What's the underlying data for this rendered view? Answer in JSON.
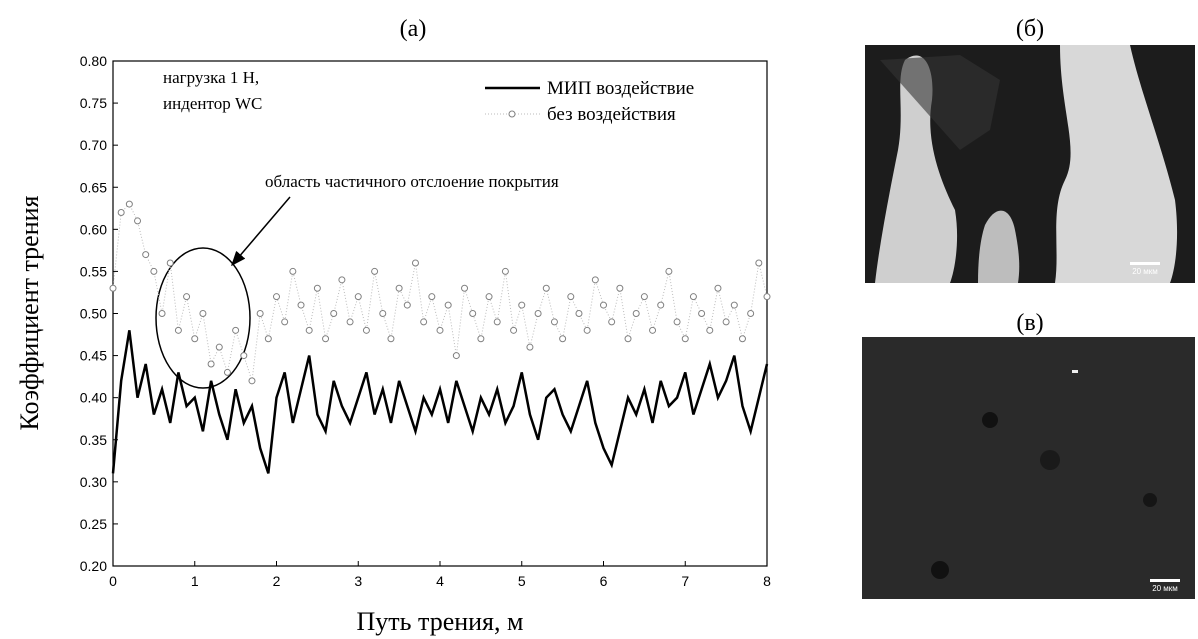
{
  "chart_data": {
    "type": "line",
    "title": "(а)",
    "xlabel": "Путь трения, м",
    "ylabel": "Коэффициент трения",
    "xlim": [
      0,
      8
    ],
    "xticks": [
      0,
      1,
      2,
      3,
      4,
      5,
      6,
      7,
      8
    ],
    "ylim": [
      0.2,
      0.8
    ],
    "yticks": [
      {
        "value": 0.2,
        "label": "0.20"
      },
      0.25,
      {
        "value": 0.3,
        "label": "0.30"
      },
      0.35,
      {
        "value": 0.4,
        "label": "0.40"
      },
      0.45,
      {
        "value": 0.5,
        "label": "0.50"
      },
      0.55,
      {
        "value": 0.6,
        "label": "0.60"
      },
      0.65,
      {
        "value": 0.7,
        "label": "0.70"
      },
      0.75,
      {
        "value": 0.8,
        "label": "0.80"
      }
    ],
    "legend": "upper right",
    "annotations": [
      "нагрузка 1 Н,",
      "индентор WC",
      "область частичного отслоение покрытия"
    ],
    "x": [
      0,
      0.1,
      0.2,
      0.3,
      0.4,
      0.5,
      0.6,
      0.7,
      0.8,
      0.9,
      1,
      1.1,
      1.2,
      1.3,
      1.4,
      1.5,
      1.6,
      1.7,
      1.8,
      1.9,
      2,
      2.1,
      2.2,
      2.3,
      2.4,
      2.5,
      2.6,
      2.7,
      2.8,
      2.9,
      3,
      3.1,
      3.2,
      3.3,
      3.4,
      3.5,
      3.6,
      3.7,
      3.8,
      3.9,
      4,
      4.1,
      4.2,
      4.3,
      4.4,
      4.5,
      4.6,
      4.7,
      4.8,
      4.9,
      5,
      5.1,
      5.2,
      5.3,
      5.4,
      5.5,
      5.6,
      5.7,
      5.8,
      5.9,
      6,
      6.1,
      6.2,
      6.3,
      6.4,
      6.5,
      6.6,
      6.7,
      6.8,
      6.9,
      7,
      7.1,
      7.2,
      7.3,
      7.4,
      7.5,
      7.6,
      7.7,
      7.8,
      7.9,
      8
    ],
    "series": [
      {
        "name": "МИП воздействие",
        "style": "line",
        "color": "#000000",
        "values": [
          0.31,
          0.42,
          0.48,
          0.4,
          0.44,
          0.38,
          0.41,
          0.37,
          0.43,
          0.39,
          0.4,
          0.36,
          0.42,
          0.38,
          0.35,
          0.41,
          0.37,
          0.39,
          0.34,
          0.31,
          0.4,
          0.43,
          0.37,
          0.41,
          0.45,
          0.38,
          0.36,
          0.42,
          0.39,
          0.37,
          0.4,
          0.43,
          0.38,
          0.41,
          0.37,
          0.42,
          0.39,
          0.36,
          0.4,
          0.38,
          0.41,
          0.37,
          0.42,
          0.39,
          0.36,
          0.4,
          0.38,
          0.41,
          0.37,
          0.39,
          0.43,
          0.38,
          0.35,
          0.4,
          0.41,
          0.38,
          0.36,
          0.39,
          0.42,
          0.37,
          0.34,
          0.32,
          0.36,
          0.4,
          0.38,
          0.41,
          0.37,
          0.42,
          0.39,
          0.4,
          0.43,
          0.38,
          0.41,
          0.44,
          0.4,
          0.42,
          0.45,
          0.39,
          0.36,
          0.4,
          0.44
        ]
      },
      {
        "name": "без воздействия",
        "style": "markers",
        "color": "#808080",
        "values": [
          0.53,
          0.62,
          0.63,
          0.61,
          0.57,
          0.55,
          0.5,
          0.56,
          0.48,
          0.52,
          0.47,
          0.5,
          0.44,
          0.46,
          0.43,
          0.48,
          0.45,
          0.42,
          0.5,
          0.47,
          0.52,
          0.49,
          0.55,
          0.51,
          0.48,
          0.53,
          0.47,
          0.5,
          0.54,
          0.49,
          0.52,
          0.48,
          0.55,
          0.5,
          0.47,
          0.53,
          0.51,
          0.56,
          0.49,
          0.52,
          0.48,
          0.51,
          0.45,
          0.53,
          0.5,
          0.47,
          0.52,
          0.49,
          0.55,
          0.48,
          0.51,
          0.46,
          0.5,
          0.53,
          0.49,
          0.47,
          0.52,
          0.5,
          0.48,
          0.54,
          0.51,
          0.49,
          0.53,
          0.47,
          0.5,
          0.52,
          0.48,
          0.51,
          0.55,
          0.49,
          0.47,
          0.52,
          0.5,
          0.48,
          0.53,
          0.49,
          0.51,
          0.47,
          0.5,
          0.56,
          0.52
        ]
      }
    ]
  },
  "images": [
    {
      "label": "(б)",
      "scale_bar": "20 мкм"
    },
    {
      "label": "(в)",
      "scale_bar": "20 мкм"
    }
  ]
}
